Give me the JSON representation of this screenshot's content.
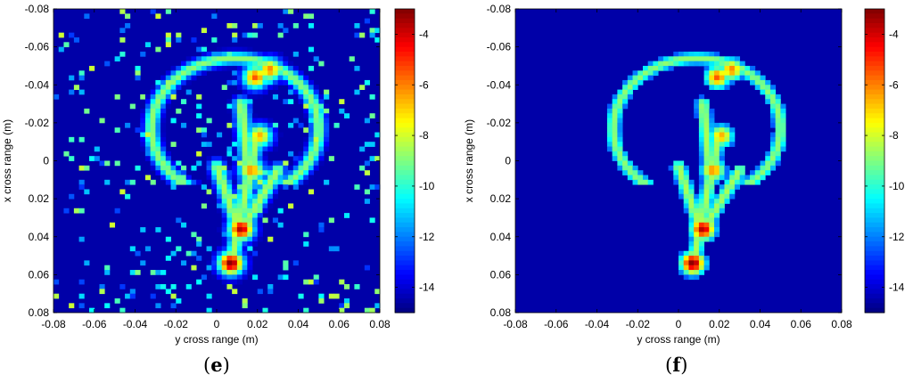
{
  "chart_data": [
    {
      "type": "heatmap",
      "panel_label": "e",
      "xlabel": "y cross range (m)",
      "ylabel": "x cross range (m)",
      "xlim": [
        -0.08,
        0.08
      ],
      "ylim": [
        0.08,
        -0.08
      ],
      "x_ticks": [
        "-0.08",
        "-0.06",
        "-0.04",
        "-0.02",
        "0",
        "0.02",
        "0.04",
        "0.06",
        "0.08"
      ],
      "y_ticks": [
        "-0.08",
        "-0.06",
        "-0.04",
        "-0.02",
        "0",
        "0.02",
        "0.04",
        "0.06",
        "0.08"
      ],
      "colorbar": {
        "min": -15,
        "max": -3,
        "ticks": [
          "-4",
          "-6",
          "-8",
          "-10",
          "-12",
          "-14"
        ],
        "colormap": "jet"
      },
      "features": {
        "loop_center": [
          0.009,
          -0.017
        ],
        "loop_radii": [
          0.041,
          0.037
        ],
        "hotspots": [
          {
            "x": 0.007,
            "y": 0.054,
            "value": -3
          },
          {
            "x": 0.012,
            "y": 0.036,
            "value": -3.5
          },
          {
            "x": 0.017,
            "y": 0.005,
            "value": -6
          },
          {
            "x": 0.021,
            "y": -0.013,
            "value": -6.5
          },
          {
            "x": 0.026,
            "y": -0.048,
            "value": -6
          },
          {
            "x": 0.019,
            "y": -0.044,
            "value": -5.5
          }
        ]
      },
      "background_speckle": true
    },
    {
      "type": "heatmap",
      "panel_label": "f",
      "xlabel": "y cross range (m)",
      "ylabel": "x cross range (m)",
      "xlim": [
        -0.08,
        0.08
      ],
      "ylim": [
        0.08,
        -0.08
      ],
      "x_ticks": [
        "-0.08",
        "-0.06",
        "-0.04",
        "-0.02",
        "0",
        "0.02",
        "0.04",
        "0.06",
        "0.08"
      ],
      "y_ticks": [
        "-0.08",
        "-0.06",
        "-0.04",
        "-0.02",
        "0",
        "0.02",
        "0.04",
        "0.06",
        "0.08"
      ],
      "colorbar": {
        "min": -15,
        "max": -3,
        "ticks": [
          "-4",
          "-6",
          "-8",
          "-10",
          "-12",
          "-14"
        ],
        "colormap": "jet"
      },
      "features": {
        "loop_center": [
          0.009,
          -0.017
        ],
        "loop_radii": [
          0.041,
          0.037
        ],
        "hotspots": [
          {
            "x": 0.007,
            "y": 0.054,
            "value": -3
          },
          {
            "x": 0.012,
            "y": 0.036,
            "value": -3.5
          },
          {
            "x": 0.017,
            "y": 0.005,
            "value": -6
          },
          {
            "x": 0.021,
            "y": -0.013,
            "value": -6.5
          },
          {
            "x": 0.026,
            "y": -0.048,
            "value": -6
          },
          {
            "x": 0.019,
            "y": -0.044,
            "value": -5.5
          }
        ]
      },
      "background_speckle": false
    }
  ],
  "captions": {
    "left": {
      "open": "(",
      "letter": "e",
      "close": ")"
    },
    "right": {
      "open": "(",
      "letter": "f",
      "close": ")"
    }
  }
}
